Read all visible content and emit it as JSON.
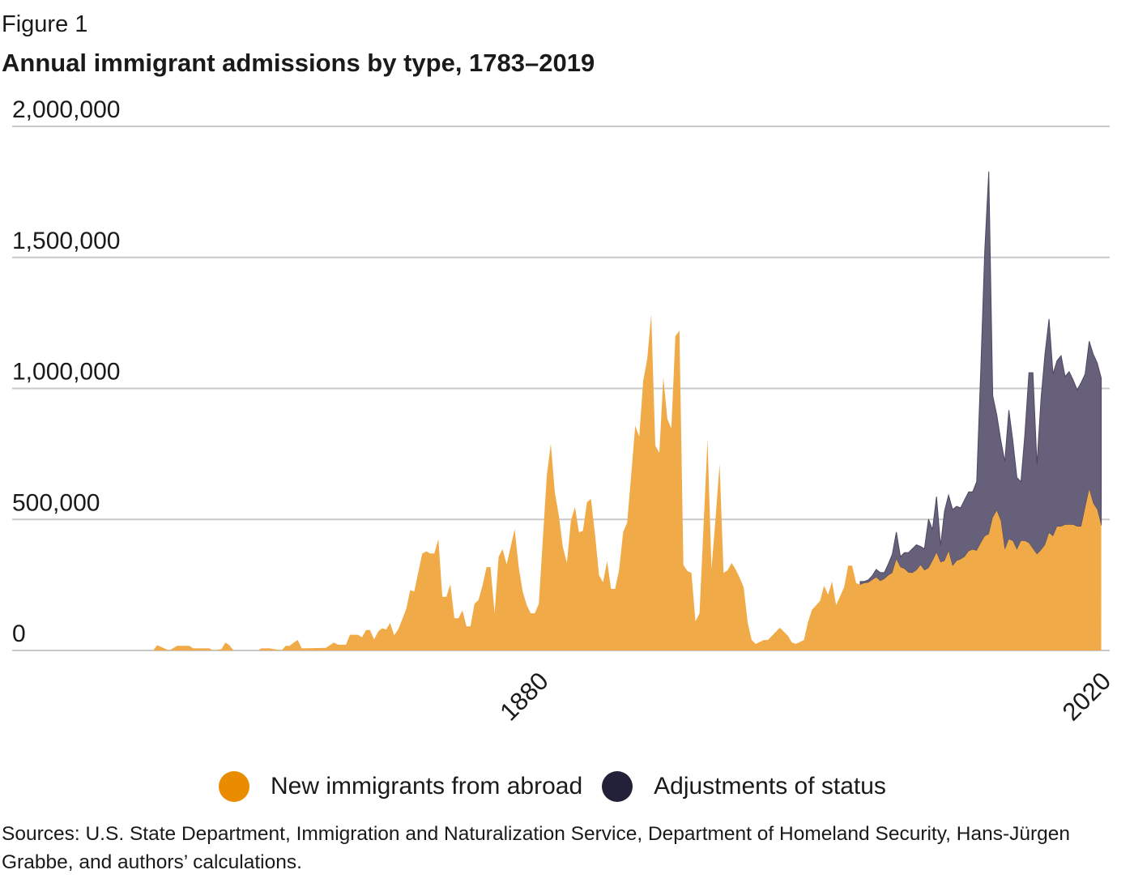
{
  "figure_label": "Figure 1",
  "chart_data": {
    "type": "area",
    "stacked": true,
    "title": "Annual immigrant admissions by type, 1783–2019",
    "xlabel": "",
    "ylabel": "",
    "xlim": [
      1783,
      2020
    ],
    "ylim": [
      0,
      2000000
    ],
    "x_ticks": [
      "1880",
      "2020"
    ],
    "y_ticks": [
      "0",
      "500,000",
      "1,000,000",
      "1,500,000",
      "2,000,000"
    ],
    "y_tick_values": [
      0,
      500000,
      1000000,
      1500000,
      2000000
    ],
    "grid": "horizontal",
    "legend_placement": "bottom",
    "series": [
      {
        "name": "New immigrants from abroad",
        "color": "#f0ab48",
        "legend_color": "#ea8c00",
        "points": [
          [
            1783,
            0
          ],
          [
            1784,
            20000
          ],
          [
            1787,
            0
          ],
          [
            1789,
            18000
          ],
          [
            1792,
            18000
          ],
          [
            1793,
            8000
          ],
          [
            1797,
            8000
          ],
          [
            1798,
            0
          ],
          [
            1800,
            5000
          ],
          [
            1801,
            30000
          ],
          [
            1802,
            20000
          ],
          [
            1803,
            0
          ],
          [
            1809,
            0
          ],
          [
            1810,
            8000
          ],
          [
            1812,
            8000
          ],
          [
            1815,
            0
          ],
          [
            1816,
            18000
          ],
          [
            1817,
            18000
          ],
          [
            1818,
            30000
          ],
          [
            1819,
            40000
          ],
          [
            1820,
            8000
          ],
          [
            1826,
            10000
          ],
          [
            1828,
            30000
          ],
          [
            1829,
            22000
          ],
          [
            1831,
            22000
          ],
          [
            1832,
            60000
          ],
          [
            1834,
            60000
          ],
          [
            1835,
            50000
          ],
          [
            1836,
            78000
          ],
          [
            1837,
            78000
          ],
          [
            1838,
            42000
          ],
          [
            1839,
            72000
          ],
          [
            1840,
            85000
          ],
          [
            1841,
            80000
          ],
          [
            1842,
            105000
          ],
          [
            1843,
            58000
          ],
          [
            1844,
            80000
          ],
          [
            1846,
            158000
          ],
          [
            1847,
            230000
          ],
          [
            1848,
            225000
          ],
          [
            1850,
            370000
          ],
          [
            1851,
            378000
          ],
          [
            1852,
            370000
          ],
          [
            1853,
            370000
          ],
          [
            1854,
            425000
          ],
          [
            1855,
            205000
          ],
          [
            1856,
            205000
          ],
          [
            1857,
            253000
          ],
          [
            1858,
            123000
          ],
          [
            1859,
            123000
          ],
          [
            1860,
            153000
          ],
          [
            1861,
            92000
          ],
          [
            1862,
            92000
          ],
          [
            1863,
            178000
          ],
          [
            1864,
            193000
          ],
          [
            1865,
            248000
          ],
          [
            1866,
            318000
          ],
          [
            1867,
            318000
          ],
          [
            1868,
            142000
          ],
          [
            1869,
            358000
          ],
          [
            1870,
            387000
          ],
          [
            1871,
            328000
          ],
          [
            1873,
            463000
          ],
          [
            1874,
            318000
          ],
          [
            1875,
            225000
          ],
          [
            1876,
            173000
          ],
          [
            1877,
            142000
          ],
          [
            1878,
            142000
          ],
          [
            1879,
            178000
          ],
          [
            1881,
            668000
          ],
          [
            1882,
            789000
          ],
          [
            1883,
            603000
          ],
          [
            1884,
            513000
          ],
          [
            1885,
            395000
          ],
          [
            1886,
            334000
          ],
          [
            1887,
            495000
          ],
          [
            1888,
            547000
          ],
          [
            1889,
            451000
          ],
          [
            1890,
            457000
          ],
          [
            1891,
            566000
          ],
          [
            1892,
            578000
          ],
          [
            1893,
            442000
          ],
          [
            1894,
            287000
          ],
          [
            1895,
            260000
          ],
          [
            1896,
            340000
          ],
          [
            1897,
            235000
          ],
          [
            1898,
            235000
          ],
          [
            1899,
            309000
          ],
          [
            1900,
            451000
          ],
          [
            1901,
            488000
          ],
          [
            1902,
            668000
          ],
          [
            1903,
            857000
          ],
          [
            1904,
            816000
          ],
          [
            1905,
            1030000
          ],
          [
            1906,
            1113000
          ],
          [
            1907,
            1283000
          ],
          [
            1908,
            782000
          ],
          [
            1909,
            754000
          ],
          [
            1910,
            1042000
          ],
          [
            1911,
            884000
          ],
          [
            1912,
            847000
          ],
          [
            1913,
            1199000
          ],
          [
            1914,
            1221000
          ],
          [
            1915,
            326000
          ],
          [
            1916,
            303000
          ],
          [
            1917,
            296000
          ],
          [
            1918,
            111000
          ],
          [
            1919,
            142000
          ],
          [
            1921,
            805000
          ],
          [
            1922,
            312000
          ],
          [
            1923,
            504000
          ],
          [
            1924,
            711000
          ],
          [
            1925,
            296000
          ],
          [
            1926,
            306000
          ],
          [
            1927,
            334000
          ],
          [
            1928,
            309000
          ],
          [
            1929,
            278000
          ],
          [
            1930,
            241000
          ],
          [
            1931,
            105000
          ],
          [
            1932,
            40000
          ],
          [
            1933,
            25000
          ],
          [
            1935,
            40000
          ],
          [
            1936,
            40000
          ],
          [
            1939,
            87000
          ],
          [
            1941,
            56000
          ],
          [
            1942,
            31000
          ],
          [
            1943,
            25000
          ],
          [
            1945,
            40000
          ],
          [
            1946,
            108000
          ],
          [
            1947,
            155000
          ],
          [
            1949,
            189000
          ],
          [
            1950,
            247000
          ],
          [
            1951,
            213000
          ],
          [
            1952,
            263000
          ],
          [
            1953,
            173000
          ],
          [
            1955,
            241000
          ],
          [
            1956,
            324000
          ],
          [
            1957,
            324000
          ],
          [
            1958,
            257000
          ],
          [
            1959,
            251000
          ],
          [
            1960,
            257000
          ],
          [
            1961,
            259000
          ],
          [
            1962,
            269000
          ],
          [
            1963,
            279000
          ],
          [
            1964,
            265000
          ],
          [
            1965,
            273000
          ],
          [
            1966,
            287000
          ],
          [
            1967,
            296000
          ],
          [
            1968,
            348000
          ],
          [
            1969,
            318000
          ],
          [
            1970,
            312000
          ],
          [
            1971,
            297000
          ],
          [
            1972,
            296000
          ],
          [
            1973,
            306000
          ],
          [
            1974,
            326000
          ],
          [
            1975,
            306000
          ],
          [
            1976,
            314000
          ],
          [
            1977,
            342000
          ],
          [
            1978,
            373000
          ],
          [
            1979,
            336000
          ],
          [
            1980,
            342000
          ],
          [
            1981,
            379000
          ],
          [
            1982,
            322000
          ],
          [
            1983,
            342000
          ],
          [
            1984,
            348000
          ],
          [
            1985,
            358000
          ],
          [
            1986,
            379000
          ],
          [
            1987,
            385000
          ],
          [
            1988,
            381000
          ],
          [
            1989,
            410000
          ],
          [
            1990,
            436000
          ],
          [
            1991,
            444000
          ],
          [
            1992,
            507000
          ],
          [
            1993,
            534000
          ],
          [
            1994,
            495000
          ],
          [
            1995,
            385000
          ],
          [
            1996,
            424000
          ],
          [
            1997,
            418000
          ],
          [
            1998,
            385000
          ],
          [
            1999,
            418000
          ],
          [
            2000,
            418000
          ],
          [
            2001,
            410000
          ],
          [
            2002,
            388000
          ],
          [
            2003,
            367000
          ],
          [
            2004,
            383000
          ],
          [
            2005,
            403000
          ],
          [
            2006,
            449000
          ],
          [
            2007,
            436000
          ],
          [
            2008,
            473000
          ],
          [
            2009,
            473000
          ],
          [
            2010,
            480000
          ],
          [
            2011,
            480000
          ],
          [
            2012,
            480000
          ],
          [
            2013,
            473000
          ],
          [
            2014,
            473000
          ],
          [
            2015,
            544000
          ],
          [
            2016,
            615000
          ],
          [
            2017,
            562000
          ],
          [
            2018,
            538000
          ],
          [
            2019,
            477000
          ]
        ]
      },
      {
        "name": "Adjustments of status",
        "color": "#66607a",
        "legend_color": "#23203a",
        "points": [
          [
            1959,
            12000
          ],
          [
            1960,
            6000
          ],
          [
            1961,
            10000
          ],
          [
            1962,
            16000
          ],
          [
            1963,
            30000
          ],
          [
            1964,
            32000
          ],
          [
            1965,
            24000
          ],
          [
            1966,
            43000
          ],
          [
            1967,
            71000
          ],
          [
            1968,
            104000
          ],
          [
            1969,
            40000
          ],
          [
            1970,
            61000
          ],
          [
            1971,
            76000
          ],
          [
            1972,
            92000
          ],
          [
            1973,
            97000
          ],
          [
            1974,
            71000
          ],
          [
            1975,
            82000
          ],
          [
            1976,
            187000
          ],
          [
            1977,
            119000
          ],
          [
            1978,
            214000
          ],
          [
            1979,
            64000
          ],
          [
            1980,
            190000
          ],
          [
            1981,
            214000
          ],
          [
            1982,
            216000
          ],
          [
            1983,
            208000
          ],
          [
            1984,
            196000
          ],
          [
            1985,
            217000
          ],
          [
            1986,
            226000
          ],
          [
            1987,
            220000
          ],
          [
            1988,
            263000
          ],
          [
            1989,
            660000
          ],
          [
            1990,
            1086000
          ],
          [
            1991,
            1384000
          ],
          [
            1992,
            465000
          ],
          [
            1993,
            365000
          ],
          [
            1994,
            306000
          ],
          [
            1995,
            336000
          ],
          [
            1996,
            493000
          ],
          [
            1997,
            383000
          ],
          [
            1998,
            275000
          ],
          [
            1999,
            226000
          ],
          [
            2000,
            407000
          ],
          [
            2001,
            650000
          ],
          [
            2002,
            672000
          ],
          [
            2003,
            342000
          ],
          [
            2004,
            577000
          ],
          [
            2005,
            728000
          ],
          [
            2006,
            816000
          ],
          [
            2007,
            619000
          ],
          [
            2008,
            633000
          ],
          [
            2009,
            652000
          ],
          [
            2010,
            565000
          ],
          [
            2011,
            584000
          ],
          [
            2012,
            553000
          ],
          [
            2013,
            521000
          ],
          [
            2014,
            550000
          ],
          [
            2015,
            511000
          ],
          [
            2016,
            565000
          ],
          [
            2017,
            569000
          ],
          [
            2018,
            559000
          ],
          [
            2019,
            562000
          ]
        ]
      }
    ]
  },
  "sources": "Sources: U.S. State Department, Immigration and Naturalization Service, Department of Homeland Security, Hans-Jürgen Grabbe, and authors’ calculations."
}
